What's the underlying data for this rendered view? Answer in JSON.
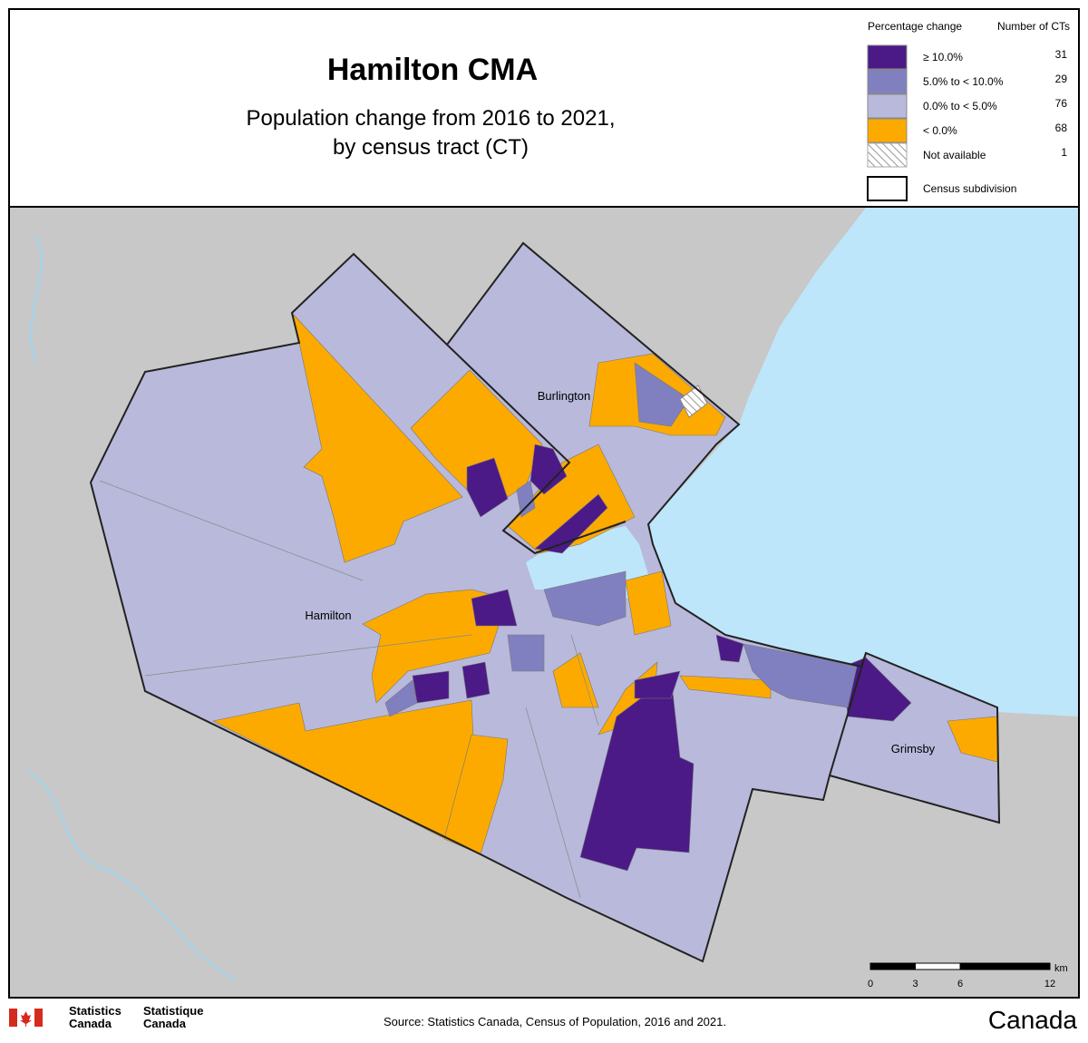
{
  "header": {
    "title": "Hamilton CMA",
    "subtitle": [
      "Population change from 2016 to 2021,",
      "by census tract (CT)"
    ]
  },
  "legend": {
    "heading_change": "Percentage change",
    "heading_count": "Number of CTs",
    "items": [
      {
        "label": "≥ 10.0%",
        "count": 31,
        "color": "#4b1a87"
      },
      {
        "label": "5.0% to < 10.0%",
        "count": 29,
        "color": "#8080c0"
      },
      {
        "label": "0.0% to < 5.0%",
        "count": 76,
        "color": "#b9b9dc"
      },
      {
        "label": "< 0.0%",
        "count": 68,
        "color": "#fcaa00"
      },
      {
        "label": "Not available",
        "count": 1
      },
      {
        "label": "Census subdivision"
      }
    ]
  },
  "places": [
    "Burlington",
    "Hamilton",
    "Grimsby"
  ],
  "scale": {
    "unit": "km",
    "ticks": [
      0,
      3,
      6,
      12
    ]
  },
  "footer": {
    "agency_en": [
      "Statistics",
      "Canada"
    ],
    "agency_fr": [
      "Statistique",
      "Canada"
    ],
    "source": "Source: Statistics Canada, Census of Population, 2016 and 2021.",
    "wordmark": "Canada"
  }
}
